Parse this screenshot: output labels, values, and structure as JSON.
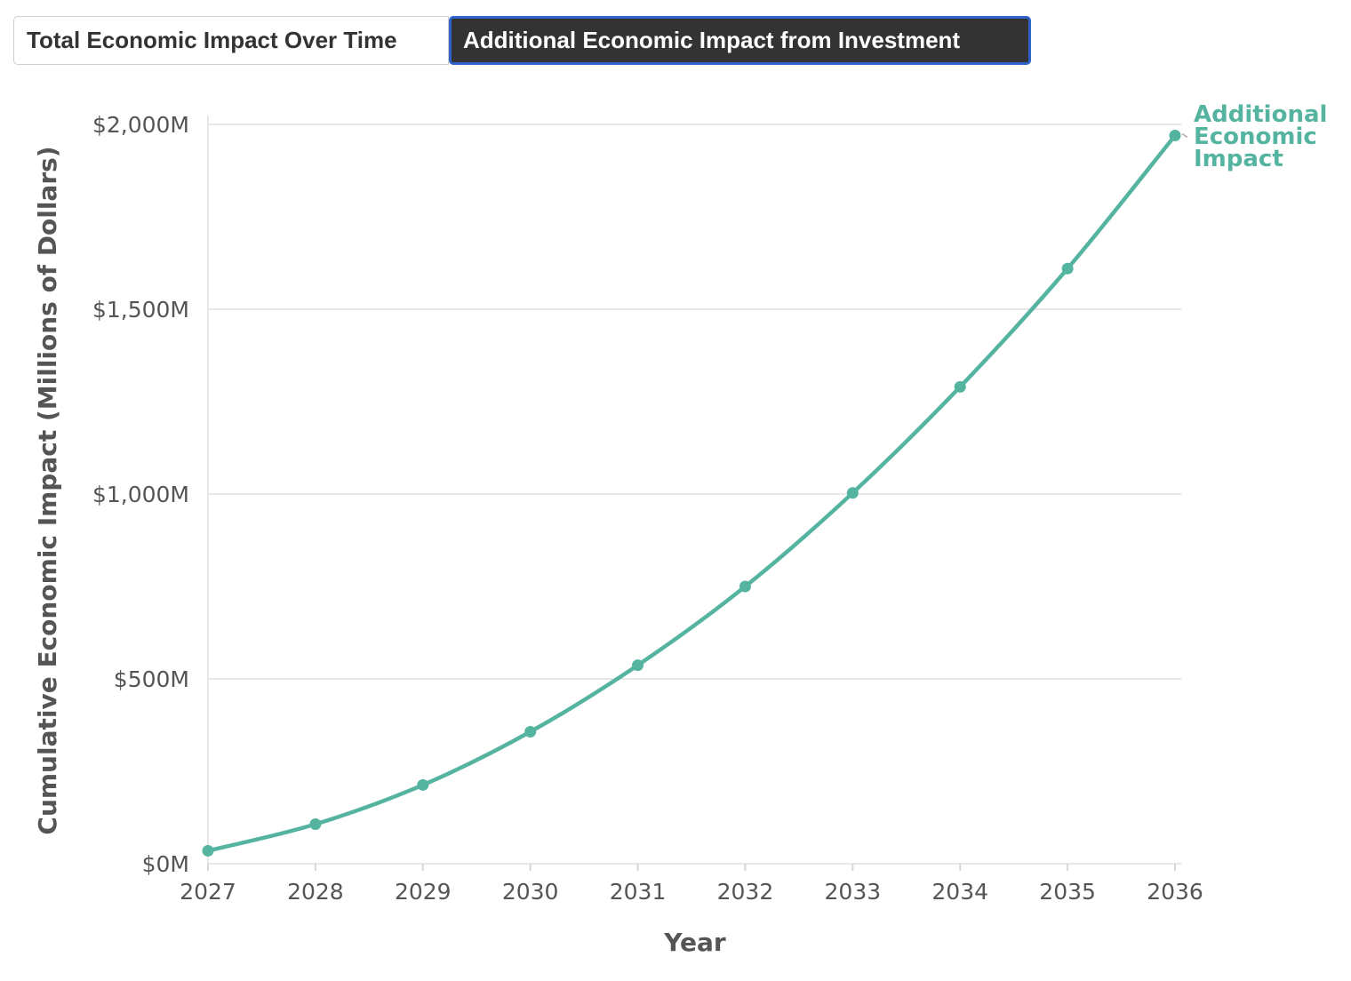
{
  "tabs": [
    {
      "label": "Total Economic Impact Over Time",
      "active": false
    },
    {
      "label": "Additional Economic Impact from Investment",
      "active": true
    }
  ],
  "colors": {
    "series": "#54b4a0",
    "grid": "#e8e8e8",
    "tab_active_bg": "#333333",
    "tab_active_border": "#2f63c9"
  },
  "chart_data": {
    "type": "line",
    "xlabel": "Year",
    "ylabel": "Cumulative Economic Impact (Millions of Dollars)",
    "x": [
      2027,
      2028,
      2029,
      2030,
      2031,
      2032,
      2033,
      2034,
      2035,
      2036
    ],
    "x_tick_labels": [
      "2027",
      "2028",
      "2029",
      "2030",
      "2031",
      "2032",
      "2033",
      "2034",
      "2035",
      "2036"
    ],
    "ylim": [
      0,
      2000
    ],
    "y_ticks": [
      0,
      500,
      1000,
      1500,
      2000
    ],
    "y_tick_labels": [
      "$0M",
      "$500M",
      "$1,000M",
      "$1,500M",
      "$2,000M"
    ],
    "grid": true,
    "series": [
      {
        "name": "Additional Economic Impact",
        "name_lines": [
          "Additional",
          "Economic",
          "Impact"
        ],
        "color": "#54b4a0",
        "values": [
          35,
          107,
          213,
          357,
          537,
          750,
          1003,
          1290,
          1610,
          1970
        ]
      }
    ]
  }
}
